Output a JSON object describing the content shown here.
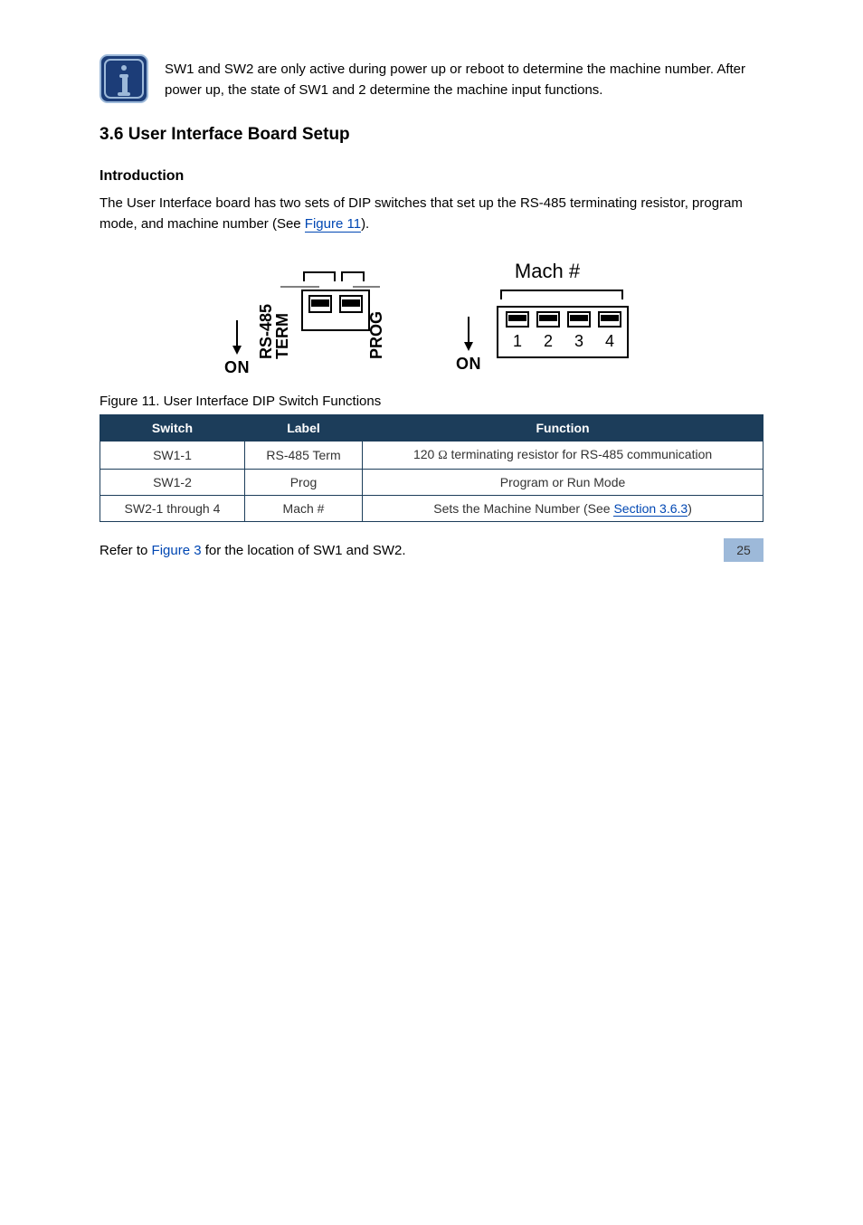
{
  "info_note": "SW1 and SW2 are only active during power up or reboot to determine the machine number. After power up, the state of SW1 and 2 determine the machine input functions.",
  "section_heading": "3.6 User Interface Board Setup",
  "intro_title": "Introduction",
  "intro_body_before_link": "The User Interface board has two sets of DIP switches that set up the RS-485 terminating resistor, program mode, and machine number (See ",
  "intro_link": "Figure 11",
  "intro_body_after_link": ").",
  "diagram": {
    "left": {
      "on_label": "ON",
      "left_label_line1": "RS-485",
      "left_label_line2": "TERM",
      "right_label": "PROG",
      "switch_count": 2
    },
    "right": {
      "title": "Mach #",
      "on_label": "ON",
      "switch_labels": [
        "1",
        "2",
        "3",
        "4"
      ]
    },
    "colors": {
      "stroke": "#000",
      "fill_switch": "#000"
    }
  },
  "figure_caption": "Figure 11. User Interface DIP Switch Functions",
  "table_header": {
    "c1": "Switch",
    "c2": "Label",
    "c3": "Function"
  },
  "table_rows": [
    {
      "c1": "SW1-1",
      "c2": "RS-485 Term",
      "c3_pre": "120 ",
      "c3_omega": "Ω",
      "c3_post": " terminating resistor for RS-485 communication",
      "link": ""
    },
    {
      "c1": "SW1-2",
      "c2": "Prog",
      "c3_pre": "Program or Run Mode",
      "c3_omega": "",
      "c3_post": "",
      "link": ""
    },
    {
      "c1": "SW2-1 through 4",
      "c2": "Mach #",
      "c3_pre": "Sets the Machine Number (See ",
      "c3_omega": "",
      "c3_post": ")",
      "link": "Section 3.6.3"
    }
  ],
  "ref_before": "Refer to ",
  "ref_link": "Figure 3",
  "ref_after": " for the location of SW1 and SW2.",
  "page_number": "25"
}
